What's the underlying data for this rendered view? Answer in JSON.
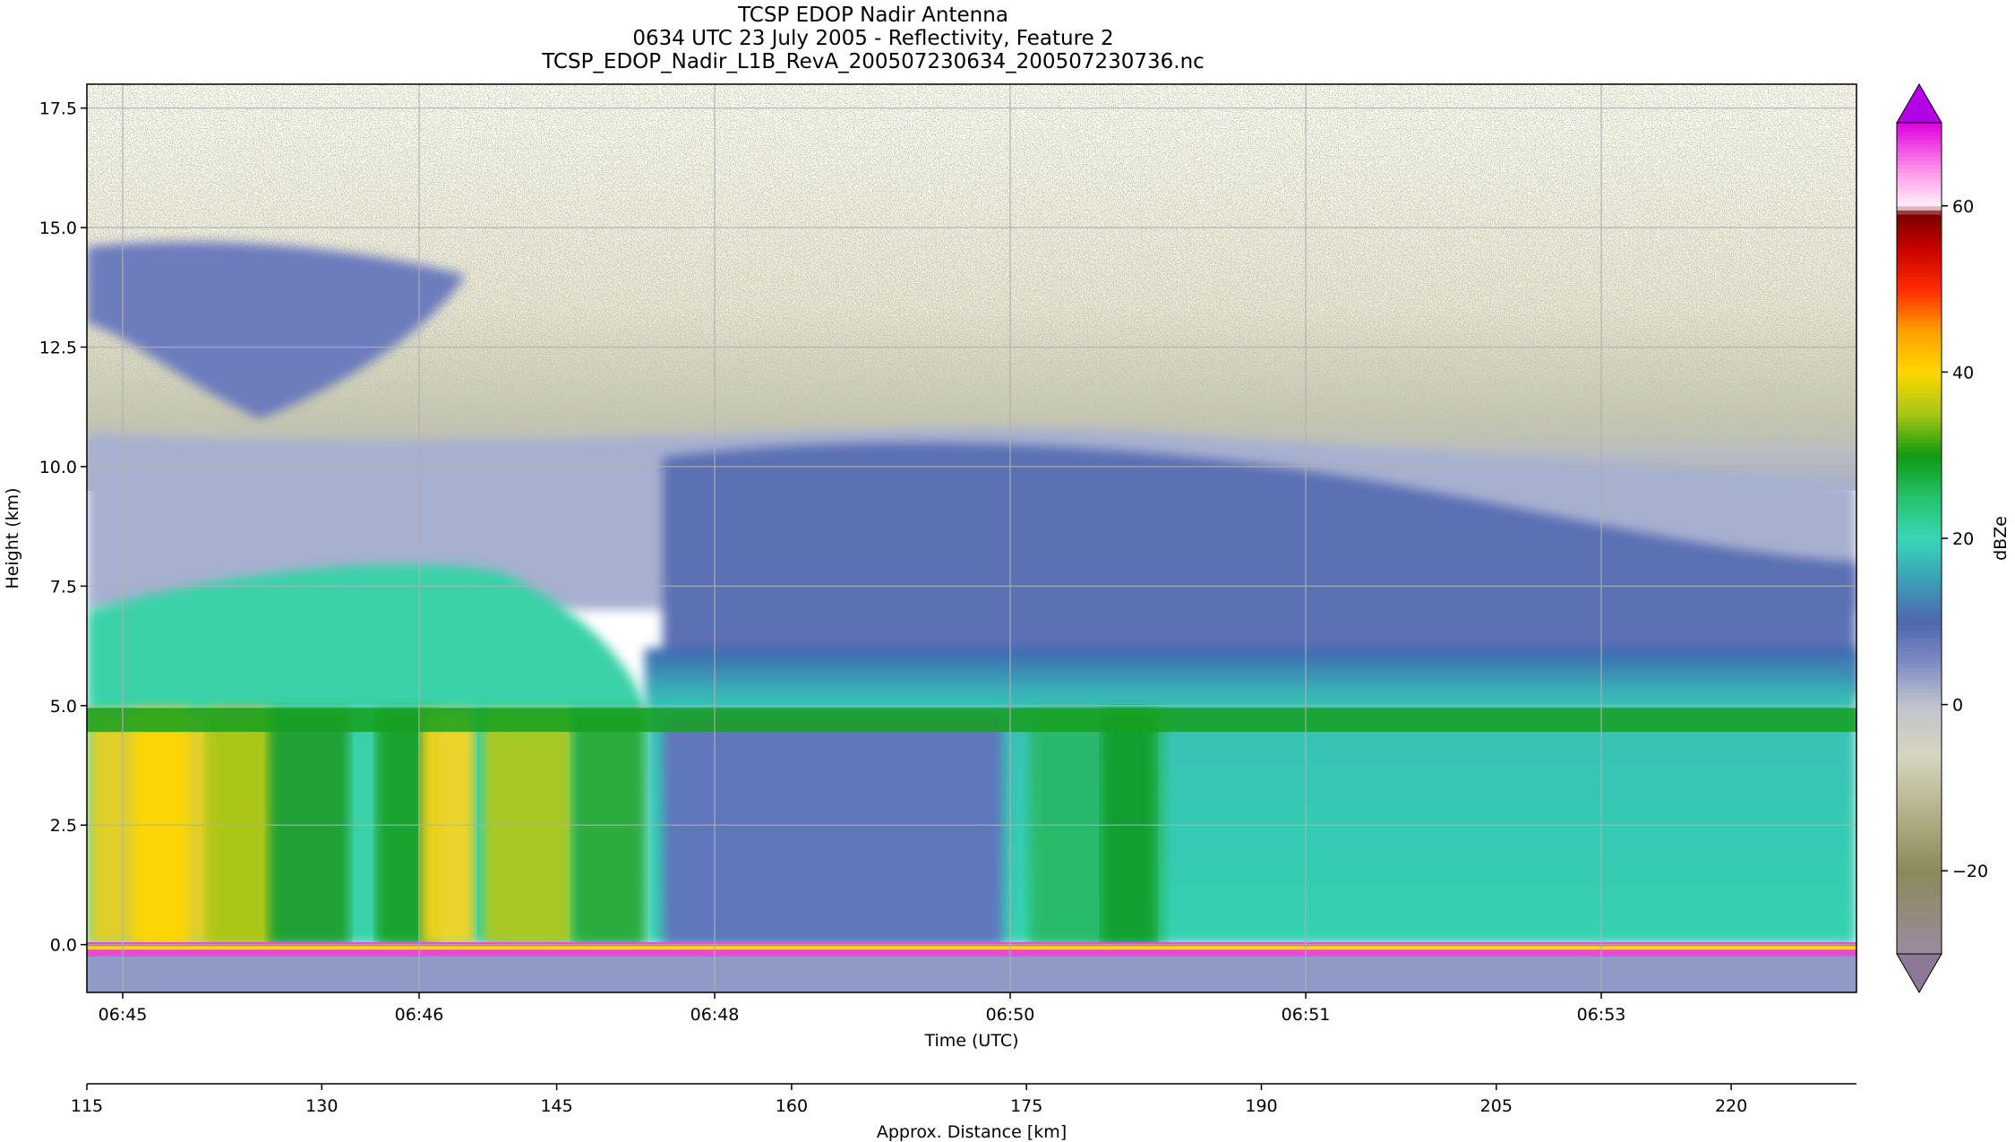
{
  "title_lines": [
    "TCSP EDOP Nadir Antenna",
    "0634 UTC 23 July 2005 - Reflectivity, Feature 2",
    "TCSP_EDOP_Nadir_L1B_RevA_200507230634_200507230736.nc"
  ],
  "chart_data": {
    "type": "heatmap",
    "title": "TCSP EDOP Nadir Antenna",
    "xlabel": "Time (UTC)",
    "ylabel": "Height (km)",
    "ylim": [
      -1.0,
      18.0
    ],
    "x_tick_labels": [
      "06:45",
      "06:46",
      "06:48",
      "06:50",
      "06:51",
      "06:53"
    ],
    "y_ticks": [
      0.0,
      2.5,
      5.0,
      7.5,
      10.0,
      12.5,
      15.0,
      17.5
    ],
    "y_tick_labels": [
      "0.0",
      "2.5",
      "5.0",
      "7.5",
      "10.0",
      "12.5",
      "15.0",
      "17.5"
    ],
    "grid": true,
    "secondary_xlabel": "Approx. Distance [km]",
    "distance_range": [
      115,
      228
    ],
    "distance_ticks": [
      115,
      130,
      145,
      160,
      175,
      190,
      205,
      220
    ],
    "distance_tick_labels": [
      "115",
      "130",
      "145",
      "160",
      "175",
      "190",
      "205",
      "220"
    ],
    "colorbar": {
      "label": "dBZe",
      "range": [
        -30,
        70
      ],
      "ticks": [
        -20,
        0,
        20,
        40,
        60
      ],
      "tick_labels": [
        "−20",
        "0",
        "20",
        "40",
        "60"
      ],
      "extend": "both",
      "colors": {
        "low_extension": "#8c7996",
        "high_extension": "#b400e6",
        "stops": [
          {
            "v": -30,
            "c": "#9b8aa0"
          },
          {
            "v": -20,
            "c": "#8c8a5a"
          },
          {
            "v": -13,
            "c": "#b3b08a"
          },
          {
            "v": -6,
            "c": "#d6d6c0"
          },
          {
            "v": 0,
            "c": "#c0c3cc"
          },
          {
            "v": 5,
            "c": "#7f8cc2"
          },
          {
            "v": 10,
            "c": "#4f66b0"
          },
          {
            "v": 15,
            "c": "#3aa0b8"
          },
          {
            "v": 20,
            "c": "#38d6b6"
          },
          {
            "v": 25,
            "c": "#26c26a"
          },
          {
            "v": 30,
            "c": "#109a10"
          },
          {
            "v": 35,
            "c": "#a6c614"
          },
          {
            "v": 40,
            "c": "#ffd700"
          },
          {
            "v": 45,
            "c": "#ff9f00"
          },
          {
            "v": 50,
            "c": "#ff2a00"
          },
          {
            "v": 55,
            "c": "#c80000"
          },
          {
            "v": 59,
            "c": "#7a0000"
          },
          {
            "v": 60,
            "c": "#fff0fa"
          },
          {
            "v": 64,
            "c": "#ff9bea"
          },
          {
            "v": 70,
            "c": "#e000e0"
          }
        ]
      }
    }
  }
}
